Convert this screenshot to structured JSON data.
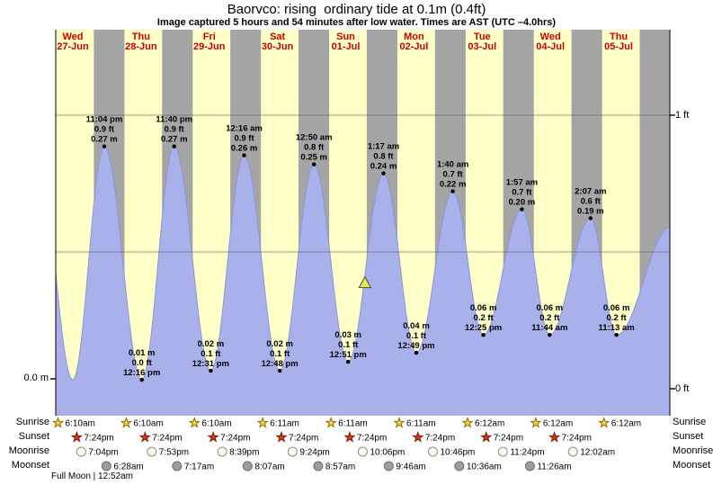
{
  "title": "Baorvco: rising  ordinary tide at 0.1m (0.4ft)",
  "subtitle": "Image captured 5 hours and 54 minutes after low water. Times are AST (UTC –4.0hrs)",
  "colors": {
    "day_band": "#ffffc8",
    "night_band": "#a5a5a5",
    "tide_fill": "#a8b1ea",
    "tide_edge": "#8b94dd",
    "date_text": "#cc0000",
    "grid_line": "#555555",
    "marker_fill": "#e9e94f",
    "sunrise_star": "#ffd34d",
    "sunrise_star_edge": "#8a6d00",
    "sunset_star": "#d43a1a",
    "sunset_star_edge": "#7a1c00",
    "moonrise_circle": "#fffdea",
    "moonrise_circle_edge": "#8d8d8d",
    "moonset_circle": "#9d9d9d",
    "moonset_circle_edge": "#6d6d6d"
  },
  "axis": {
    "left_zero_label": "0.0 m",
    "right_top_label": "1 ft",
    "right_bottom_label": "0 ft"
  },
  "days": [
    {
      "weekday": "Wed",
      "date": "27-Jun"
    },
    {
      "weekday": "Thu",
      "date": "28-Jun"
    },
    {
      "weekday": "Fri",
      "date": "29-Jun"
    },
    {
      "weekday": "Sat",
      "date": "30-Jun"
    },
    {
      "weekday": "Sun",
      "date": "01-Jul"
    },
    {
      "weekday": "Mon",
      "date": "02-Jul"
    },
    {
      "weekday": "Tue",
      "date": "03-Jul"
    },
    {
      "weekday": "Wed",
      "date": "04-Jul"
    },
    {
      "weekday": "Thu",
      "date": "05-Jul"
    }
  ],
  "chart_data": {
    "type": "area",
    "series_name": "tide height",
    "y_unit_left": "m",
    "y_unit_right": "ft",
    "ylim_ft": [
      0,
      1.33
    ],
    "daylight": {
      "sunrise_hour": 6.17,
      "sunset_hour": 19.4
    },
    "high_tides": [
      {
        "day": 0,
        "hour": 23.07,
        "time": "11:04 pm",
        "ft_label": "0.9 ft",
        "m_label": "0.27 m",
        "m": 0.27
      },
      {
        "day": 1,
        "hour": 23.67,
        "time": "11:40 pm",
        "ft_label": "0.9 ft",
        "m_label": "0.27 m",
        "m": 0.27
      },
      {
        "day": 3,
        "hour": 0.27,
        "time": "12:16 am",
        "ft_label": "0.9 ft",
        "m_label": "0.26 m",
        "m": 0.26
      },
      {
        "day": 4,
        "hour": 0.83,
        "time": "12:50 am",
        "ft_label": "0.8 ft",
        "m_label": "0.25 m",
        "m": 0.25
      },
      {
        "day": 5,
        "hour": 1.28,
        "time": "1:17 am",
        "ft_label": "0.8 ft",
        "m_label": "0.24 m",
        "m": 0.24
      },
      {
        "day": 6,
        "hour": 1.67,
        "time": "1:40 am",
        "ft_label": "0.7 ft",
        "m_label": "0.22 m",
        "m": 0.22
      },
      {
        "day": 7,
        "hour": 1.95,
        "time": "1:57 am",
        "ft_label": "0.7 ft",
        "m_label": "0.20 m",
        "m": 0.2
      },
      {
        "day": 8,
        "hour": 2.12,
        "time": "2:07 am",
        "ft_label": "0.6 ft",
        "m_label": "0.19 m",
        "m": 0.19
      }
    ],
    "low_tides": [
      {
        "day": 1,
        "hour": 12.27,
        "time": "12:16 pm",
        "ft_label": "0.0 ft",
        "m_label": "0.01 m",
        "m": 0.01
      },
      {
        "day": 2,
        "hour": 12.52,
        "time": "12:31 pm",
        "ft_label": "0.1 ft",
        "m_label": "0.02 m",
        "m": 0.02
      },
      {
        "day": 3,
        "hour": 12.8,
        "time": "12:48 pm",
        "ft_label": "0.1 ft",
        "m_label": "0.02 m",
        "m": 0.02
      },
      {
        "day": 4,
        "hour": 12.85,
        "time": "12:51 pm",
        "ft_label": "0.1 ft",
        "m_label": "0.03 m",
        "m": 0.03
      },
      {
        "day": 5,
        "hour": 12.82,
        "time": "12:49 pm",
        "ft_label": "0.1 ft",
        "m_label": "0.04 m",
        "m": 0.04
      },
      {
        "day": 6,
        "hour": 12.42,
        "time": "12:25 pm",
        "ft_label": "0.2 ft",
        "m_label": "0.06 m",
        "m": 0.06
      },
      {
        "day": 7,
        "hour": 11.73,
        "time": "11:44 am",
        "ft_label": "0.2 ft",
        "m_label": "0.06 m",
        "m": 0.06
      },
      {
        "day": 8,
        "hour": 11.22,
        "time": "11:13 am",
        "ft_label": "0.2 ft",
        "m_label": "0.06 m",
        "m": 0.06
      }
    ],
    "current_marker": {
      "day": 4,
      "hour": 18.75
    }
  },
  "sun_moon": {
    "rows": [
      {
        "id": "sunrise",
        "label": "Sunrise",
        "icon": "sunrise-star-icon",
        "events": [
          {
            "day": 0,
            "hour": 6.17,
            "time": "6:10am"
          },
          {
            "day": 1,
            "hour": 6.17,
            "time": "6:10am"
          },
          {
            "day": 2,
            "hour": 6.17,
            "time": "6:10am"
          },
          {
            "day": 3,
            "hour": 6.18,
            "time": "6:11am"
          },
          {
            "day": 4,
            "hour": 6.18,
            "time": "6:11am"
          },
          {
            "day": 5,
            "hour": 6.18,
            "time": "6:11am"
          },
          {
            "day": 6,
            "hour": 6.2,
            "time": "6:12am"
          },
          {
            "day": 7,
            "hour": 6.2,
            "time": "6:12am"
          },
          {
            "day": 8,
            "hour": 6.2,
            "time": "6:12am"
          }
        ]
      },
      {
        "id": "sunset",
        "label": "Sunset",
        "icon": "sunset-star-icon",
        "events": [
          {
            "day": 0,
            "hour": 19.4,
            "time": "7:24pm"
          },
          {
            "day": 1,
            "hour": 19.4,
            "time": "7:24pm"
          },
          {
            "day": 2,
            "hour": 19.4,
            "time": "7:24pm"
          },
          {
            "day": 3,
            "hour": 19.4,
            "time": "7:24pm"
          },
          {
            "day": 4,
            "hour": 19.4,
            "time": "7:24pm"
          },
          {
            "day": 5,
            "hour": 19.4,
            "time": "7:24pm"
          },
          {
            "day": 6,
            "hour": 19.4,
            "time": "7:24pm"
          },
          {
            "day": 7,
            "hour": 19.4,
            "time": "7:24pm"
          }
        ]
      },
      {
        "id": "moonrise",
        "label": "Moonrise",
        "icon": "moonrise-circle-icon",
        "events": [
          {
            "day": 0,
            "hour": 19.07,
            "time": "7:04pm"
          },
          {
            "day": 1,
            "hour": 19.88,
            "time": "7:53pm"
          },
          {
            "day": 2,
            "hour": 20.65,
            "time": "8:39pm"
          },
          {
            "day": 3,
            "hour": 21.4,
            "time": "9:24pm"
          },
          {
            "day": 4,
            "hour": 22.1,
            "time": "10:06pm"
          },
          {
            "day": 5,
            "hour": 22.77,
            "time": "10:46pm"
          },
          {
            "day": 6,
            "hour": 23.4,
            "time": "11:24pm"
          },
          {
            "day": 8,
            "hour": 0.03,
            "time": "12:02am"
          }
        ]
      },
      {
        "id": "moonset",
        "label": "Moonset",
        "icon": "moonset-circle-icon",
        "events": [
          {
            "day": 1,
            "hour": 6.47,
            "time": "6:28am"
          },
          {
            "day": 2,
            "hour": 7.28,
            "time": "7:17am"
          },
          {
            "day": 3,
            "hour": 8.12,
            "time": "8:07am"
          },
          {
            "day": 4,
            "hour": 8.95,
            "time": "8:57am"
          },
          {
            "day": 5,
            "hour": 9.77,
            "time": "9:46am"
          },
          {
            "day": 6,
            "hour": 10.6,
            "time": "10:36am"
          },
          {
            "day": 7,
            "hour": 11.43,
            "time": "11:26am"
          }
        ]
      }
    ],
    "footnote": "Full Moon | 12:52am"
  }
}
